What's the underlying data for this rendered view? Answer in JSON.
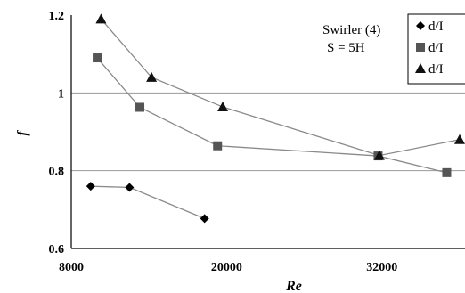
{
  "chart_data": {
    "type": "line",
    "xlabel": "Re",
    "ylabel": "f",
    "xlim": [
      8000,
      38000
    ],
    "ylim": [
      0.6,
      1.2
    ],
    "xticks": [
      "8000",
      "20000",
      "32000"
    ],
    "yticks": [
      "0.6",
      "0.8",
      "1",
      "1.2"
    ],
    "grid": "horizontal",
    "annotations": [
      "Swirler (4)",
      "S = 5H"
    ],
    "legend_position": "top-right",
    "series": [
      {
        "name": "d/I",
        "marker": "diamond",
        "color": "#000000",
        "x": [
          9500,
          12500,
          18300
        ],
        "y": [
          0.76,
          0.757,
          0.677
        ]
      },
      {
        "name": "d/I",
        "marker": "square",
        "color": "#555555",
        "x": [
          10000,
          13300,
          19300,
          31700,
          37000
        ],
        "y": [
          1.09,
          0.963,
          0.864,
          0.838,
          0.795
        ]
      },
      {
        "name": "d/I",
        "marker": "triangle",
        "color": "#111111",
        "x": [
          10300,
          14200,
          19700,
          31800,
          38000
        ],
        "y": [
          1.19,
          1.04,
          0.964,
          0.839,
          0.88
        ]
      }
    ]
  }
}
